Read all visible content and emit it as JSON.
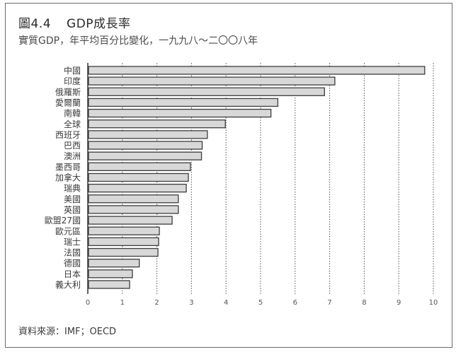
{
  "header": {
    "figure_number": "圖4.4",
    "title": "GDP成長率",
    "subtitle": "實質GDP，年平均百分比變化，一九九八～二〇〇八年"
  },
  "footer": {
    "source": "資料來源：IMF；OECD"
  },
  "colors": {
    "bar_fill": "#d8d8d8",
    "bar_stroke": "#3c3c3c",
    "grid": "#555555",
    "frame": "#6a6a6a"
  },
  "chart_data": {
    "type": "bar",
    "orientation": "horizontal",
    "title": "GDP成長率",
    "subtitle": "實質GDP，年平均百分比變化，一九九八～二〇〇八年",
    "xlabel": "",
    "ylabel": "",
    "xlim": [
      0,
      10
    ],
    "xticks": [
      "0",
      "1",
      "2",
      "3",
      "4",
      "5",
      "6",
      "7",
      "8",
      "9",
      "10"
    ],
    "grid": "vertical dotted",
    "categories": [
      "中國",
      "印度",
      "俄羅斯",
      "愛爾蘭",
      "南韓",
      "全球",
      "西班牙",
      "巴西",
      "澳洲",
      "墨西哥",
      "加拿大",
      "瑞典",
      "美國",
      "英國",
      "歐盟27國",
      "歐元區",
      "瑞士",
      "法國",
      "德國",
      "日本",
      "義大利"
    ],
    "values": [
      9.75,
      7.15,
      6.85,
      5.5,
      5.3,
      3.98,
      3.46,
      3.31,
      3.29,
      2.97,
      2.91,
      2.85,
      2.62,
      2.62,
      2.44,
      2.07,
      2.05,
      2.03,
      1.49,
      1.29,
      1.21
    ]
  }
}
